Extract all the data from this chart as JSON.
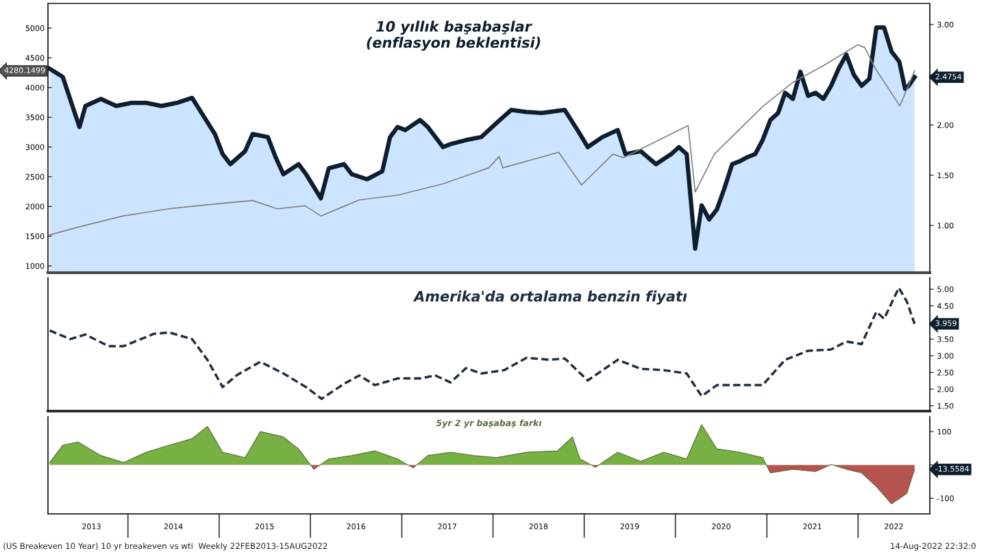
{
  "chart_data": [
    {
      "type": "area",
      "xlim": [
        "2013-02-15",
        "2022-10-15"
      ],
      "tick_labels": "y",
      "ylim": [
        885,
        5415
      ],
      "yticks": [
        1000,
        1500,
        2000,
        2500,
        3000,
        3500,
        4000,
        4500,
        5000
      ],
      "y2lim": [
        0.53,
        3.21
      ],
      "y2ticks": [
        {
          "value": 1,
          "label": "1.00"
        },
        {
          "value": 1.5,
          "label": "1.50"
        },
        {
          "value": 2,
          "label": "2.00"
        },
        {
          "value": 2.5,
          "label": null
        },
        {
          "value": 3,
          "label": "3.00"
        }
      ],
      "annotations": [
        "4280.1499",
        "2.4754"
      ],
      "series": [
        {
          "type": "line",
          "axis": "y",
          "color": "#808080",
          "x": [
            "2013-02-22",
            "2013-06-14",
            "2013-12-13",
            "2014-06-13",
            "2014-12-12",
            "2015-05-15",
            "2015-08-21",
            "2015-12-11",
            "2016-02-12",
            "2016-07-15",
            "2016-12-16",
            "2017-06-16",
            "2017-12-15",
            "2018-01-26",
            "2018-02-09",
            "2018-09-21",
            "2018-12-21",
            "2019-04-26",
            "2019-06-07",
            "2019-12-20",
            "2020-02-21",
            "2020-03-20",
            "2020-06-05",
            "2020-08-28",
            "2020-12-18",
            "2021-04-16",
            "2021-08-20",
            "2021-12-31",
            "2022-01-28",
            "2022-03-11",
            "2022-06-17",
            "2022-08-15"
          ],
          "values": [
            1520,
            1650,
            1840,
            1960,
            2040,
            2100,
            1960,
            2010,
            1840,
            2110,
            2190,
            2380,
            2650,
            2840,
            2650,
            2910,
            2360,
            2880,
            2820,
            3230,
            3360,
            2240,
            2880,
            3230,
            3690,
            4090,
            4380,
            4720,
            4670,
            4320,
            3690,
            4280.1499
          ]
        },
        {
          "type": "area",
          "axis": "y2",
          "name": "10 yıllık başabaşlar\n(enflasyon beklentisi)",
          "color": "#cce4ff",
          "x": [
            "2013-02-22",
            "2013-04-15",
            "2013-06-21",
            "2013-07-15",
            "2013-09-15",
            "2013-11-15",
            "2014-01-15",
            "2014-03-15",
            "2014-05-15",
            "2014-07-15",
            "2014-09-15",
            "2014-10-15",
            "2014-12-15",
            "2015-01-15",
            "2015-02-15",
            "2015-04-15",
            "2015-05-15",
            "2015-07-15",
            "2015-08-15",
            "2015-09-15",
            "2015-11-15",
            "2015-12-15",
            "2016-02-12",
            "2016-03-15",
            "2016-05-15",
            "2016-06-15",
            "2016-08-15",
            "2016-10-15",
            "2016-11-15",
            "2016-12-15",
            "2017-01-15",
            "2017-03-15",
            "2017-04-15",
            "2017-06-15",
            "2017-07-15",
            "2017-09-15",
            "2017-11-15",
            "2018-01-15",
            "2018-03-15",
            "2018-05-15",
            "2018-07-15",
            "2018-09-15",
            "2018-10-15",
            "2018-12-15",
            "2019-01-15",
            "2019-03-15",
            "2019-05-15",
            "2019-06-15",
            "2019-08-15",
            "2019-10-15",
            "2019-12-15",
            "2020-01-15",
            "2020-02-15",
            "2020-03-20",
            "2020-04-15",
            "2020-05-15",
            "2020-06-15",
            "2020-07-15",
            "2020-08-15",
            "2020-09-15",
            "2020-10-15",
            "2020-11-15",
            "2020-12-15",
            "2021-01-15",
            "2021-02-15",
            "2021-03-15",
            "2021-04-15",
            "2021-05-15",
            "2021-06-15",
            "2021-07-15",
            "2021-08-15",
            "2021-09-15",
            "2021-10-15",
            "2021-11-15",
            "2021-12-15",
            "2022-01-15",
            "2022-02-15",
            "2022-03-15",
            "2022-04-15",
            "2022-05-15",
            "2022-06-15",
            "2022-07-08",
            "2022-07-22",
            "2022-08-15"
          ],
          "values": [
            2.56,
            2.48,
            1.98,
            2.19,
            2.26,
            2.19,
            2.22,
            2.22,
            2.19,
            2.22,
            2.27,
            2.15,
            1.91,
            1.71,
            1.61,
            1.74,
            1.91,
            1.88,
            1.68,
            1.51,
            1.61,
            1.51,
            1.27,
            1.57,
            1.61,
            1.51,
            1.46,
            1.54,
            1.88,
            1.98,
            1.95,
            2.05,
            1.98,
            1.78,
            1.81,
            1.85,
            1.88,
            2.02,
            2.15,
            2.13,
            2.12,
            2.14,
            2.15,
            1.91,
            1.78,
            1.88,
            1.95,
            1.71,
            1.74,
            1.61,
            1.71,
            1.78,
            1.71,
            0.77,
            1.2,
            1.06,
            1.16,
            1.37,
            1.61,
            1.64,
            1.68,
            1.71,
            1.85,
            2.05,
            2.12,
            2.32,
            2.26,
            2.53,
            2.29,
            2.32,
            2.26,
            2.39,
            2.56,
            2.7,
            2.5,
            2.39,
            2.46,
            2.97,
            2.97,
            2.73,
            2.63,
            2.36,
            2.39,
            2.4754
          ]
        }
      ]
    },
    {
      "type": "line",
      "xlim": [
        "2013-02-15",
        "2022-10-15"
      ],
      "tick_labels": "y",
      "line_style": "dashed",
      "y2lim": [
        1.34,
        5.35
      ],
      "y2ticks": [
        {
          "value": 1.5,
          "label": "1.50"
        },
        {
          "value": 2,
          "label": "2.00"
        },
        {
          "value": 2.5,
          "label": "2.50"
        },
        {
          "value": 3,
          "label": "3.00"
        },
        {
          "value": 3.5,
          "label": "3.50"
        },
        {
          "value": 4,
          "label": null
        },
        {
          "value": 4.5,
          "label": "4.50"
        },
        {
          "value": 5,
          "label": "5.00"
        }
      ],
      "annotations": [
        "3.959"
      ],
      "series": [
        {
          "axis": "y2",
          "name": "Amerika'da ortalama benzin fiyatı",
          "color": "#1f2d3d",
          "x": [
            "2013-02-22",
            "2013-05-15",
            "2013-07-15",
            "2013-10-15",
            "2013-12-15",
            "2014-04-15",
            "2014-06-15",
            "2014-09-15",
            "2014-11-15",
            "2015-01-15",
            "2015-03-15",
            "2015-06-15",
            "2015-09-15",
            "2015-12-15",
            "2016-02-15",
            "2016-05-15",
            "2016-07-15",
            "2016-09-15",
            "2016-12-15",
            "2017-03-15",
            "2017-05-15",
            "2017-07-15",
            "2017-09-15",
            "2017-11-15",
            "2018-02-15",
            "2018-05-15",
            "2018-08-15",
            "2018-10-15",
            "2019-01-15",
            "2019-05-15",
            "2019-08-15",
            "2019-11-15",
            "2020-02-15",
            "2020-04-15",
            "2020-06-15",
            "2020-09-15",
            "2020-12-15",
            "2021-03-15",
            "2021-06-15",
            "2021-09-15",
            "2021-11-15",
            "2022-01-15",
            "2022-03-15",
            "2022-04-15",
            "2022-06-13",
            "2022-07-15",
            "2022-08-15"
          ],
          "values": [
            3.76,
            3.5,
            3.64,
            3.29,
            3.29,
            3.66,
            3.7,
            3.5,
            2.88,
            2.06,
            2.43,
            2.82,
            2.47,
            2.06,
            1.71,
            2.16,
            2.41,
            2.12,
            2.32,
            2.32,
            2.41,
            2.2,
            2.63,
            2.47,
            2.57,
            2.94,
            2.88,
            2.92,
            2.26,
            2.88,
            2.61,
            2.57,
            2.47,
            1.79,
            2.12,
            2.12,
            2.12,
            2.88,
            3.15,
            3.19,
            3.43,
            3.35,
            4.32,
            4.11,
            5.04,
            4.63,
            3.959
          ]
        }
      ]
    },
    {
      "type": "area",
      "xlim": [
        "2013-02-15",
        "2022-10-15"
      ],
      "xticks": [
        {
          "value": "2013-08-08",
          "label": "2013"
        },
        {
          "value": "2014-07-02",
          "label": "2014"
        },
        {
          "value": "2015-07-02",
          "label": "2015"
        },
        {
          "value": "2016-07-02",
          "label": "2016"
        },
        {
          "value": "2017-07-02",
          "label": "2017"
        },
        {
          "value": "2018-07-02",
          "label": "2018"
        },
        {
          "value": "2019-07-02",
          "label": "2019"
        },
        {
          "value": "2020-07-02",
          "label": "2020"
        },
        {
          "value": "2021-07-02",
          "label": "2021"
        },
        {
          "value": "2022-05-24",
          "label": "2022"
        }
      ],
      "y2lim": [
        -147,
        145
      ],
      "y2ticks": [
        -100,
        {
          "value": 0,
          "label": null
        },
        100
      ],
      "annotations": [
        "-13.5584",
        "(US Breakeven 10 Year) 10 yr breakeven vs wti  Weekly 22FEB2013-15AUG2022",
        "14-Aug-2022 22:32:0"
      ],
      "series": [
        {
          "axis": "y2",
          "name": "5yr 2 yr başabaş farkı",
          "color": "#5a6b3a",
          "x": [
            "2013-02-22",
            "2013-04-15",
            "2013-06-15",
            "2013-09-15",
            "2013-12-15",
            "2014-03-15",
            "2014-06-15",
            "2014-09-15",
            "2014-11-15",
            "2015-01-15",
            "2015-04-15",
            "2015-06-15",
            "2015-09-15",
            "2015-11-15",
            "2016-01-15",
            "2016-03-15",
            "2016-06-15",
            "2016-09-15",
            "2016-12-15",
            "2017-02-15",
            "2017-04-15",
            "2017-07-15",
            "2017-10-15",
            "2018-01-15",
            "2018-05-15",
            "2018-09-15",
            "2018-11-15",
            "2018-12-15",
            "2019-02-15",
            "2019-05-15",
            "2019-08-15",
            "2019-11-15",
            "2020-02-15",
            "2020-04-15",
            "2020-06-15",
            "2020-09-15",
            "2020-12-15",
            "2021-01-15",
            "2021-04-15",
            "2021-07-15",
            "2021-09-15",
            "2021-11-15",
            "2022-01-15",
            "2022-03-15",
            "2022-05-15",
            "2022-07-15",
            "2022-08-15"
          ],
          "values": [
            7,
            59,
            69,
            28,
            7,
            38,
            59,
            79,
            116,
            38,
            22,
            100,
            84,
            48,
            -13,
            18,
            28,
            42,
            18,
            -9,
            28,
            38,
            28,
            22,
            38,
            42,
            84,
            18,
            -7,
            38,
            11,
            38,
            18,
            121,
            48,
            38,
            22,
            -24,
            -13,
            -20,
            1,
            -13,
            -24,
            -65,
            -117,
            -86,
            -13.5584
          ],
          "colors": [
            "#77b043",
            "#77b043",
            "#77b043",
            "#77b043",
            "#77b043",
            "#77b043",
            "#77b043",
            "#77b043",
            "#77b043",
            "#77b043",
            "#77b043",
            "#77b043",
            "#77b043",
            "#77b043",
            "#b5534f",
            "#77b043",
            "#77b043",
            "#77b043",
            "#77b043",
            "#b5534f",
            "#77b043",
            "#77b043",
            "#77b043",
            "#77b043",
            "#77b043",
            "#77b043",
            "#77b043",
            "#77b043",
            "#b5534f",
            "#77b043",
            "#77b043",
            "#77b043",
            "#77b043",
            "#77b043",
            "#77b043",
            "#77b043",
            "#77b043",
            "#b5534f",
            "#b5534f",
            "#b5534f",
            "#77b043",
            "#b5534f",
            "#b5534f",
            "#b5534f",
            "#b5534f",
            "#b5534f",
            "#b5534f"
          ]
        }
      ]
    }
  ]
}
